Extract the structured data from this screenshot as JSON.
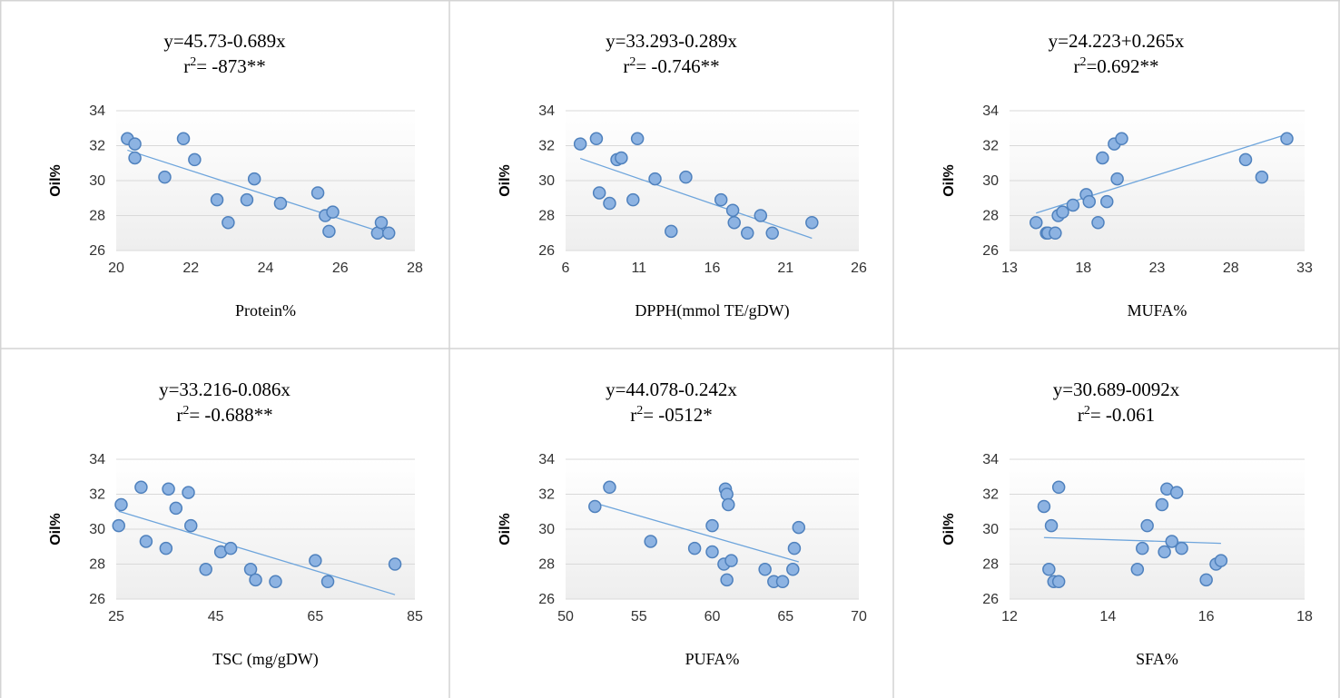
{
  "colors": {
    "marker_fill": "#8db3e2",
    "marker_stroke": "#4f81bd",
    "trend": "#6ea5dc",
    "grid": "#d9d9d9",
    "frame": "#d4d4d4"
  },
  "chart_data": [
    {
      "type": "scatter",
      "equation": "y=45.73-0.689x",
      "r2_prefix": "r",
      "r2_sup": "2",
      "r2_value": "= -873**",
      "xlabel": "Protein%",
      "ylabel": "Oil%",
      "xlim": [
        20,
        28
      ],
      "ylim": [
        26,
        34
      ],
      "xticks": [
        20,
        22,
        24,
        26,
        28
      ],
      "yticks": [
        26,
        28,
        30,
        32,
        34
      ],
      "points": [
        [
          20.3,
          32.4
        ],
        [
          20.5,
          32.1
        ],
        [
          20.5,
          31.3
        ],
        [
          21.3,
          30.2
        ],
        [
          21.8,
          32.4
        ],
        [
          22.1,
          31.2
        ],
        [
          22.7,
          28.9
        ],
        [
          23.0,
          27.6
        ],
        [
          23.5,
          28.9
        ],
        [
          23.7,
          30.1
        ],
        [
          24.4,
          28.7
        ],
        [
          25.4,
          29.3
        ],
        [
          25.6,
          28.0
        ],
        [
          25.7,
          27.1
        ],
        [
          25.8,
          28.2
        ],
        [
          27.0,
          27.0
        ],
        [
          27.1,
          27.6
        ],
        [
          27.3,
          27.0
        ]
      ],
      "trend": {
        "intercept": 45.73,
        "slope": -0.689,
        "x_range": [
          20.3,
          27.3
        ]
      }
    },
    {
      "type": "scatter",
      "equation": "y=33.293-0.289x",
      "r2_prefix": "r",
      "r2_sup": "2",
      "r2_value": "= -0.746**",
      "xlabel": "DPPH(mmol TE/gDW)",
      "ylabel": "Oil%",
      "xlim": [
        6,
        26
      ],
      "ylim": [
        26,
        34
      ],
      "xticks": [
        6,
        11,
        16,
        21,
        26
      ],
      "yticks": [
        26,
        28,
        30,
        32,
        34
      ],
      "points": [
        [
          7.0,
          32.1
        ],
        [
          8.1,
          32.4
        ],
        [
          8.3,
          29.3
        ],
        [
          9.0,
          28.7
        ],
        [
          9.5,
          31.2
        ],
        [
          9.8,
          31.3
        ],
        [
          10.6,
          28.9
        ],
        [
          10.9,
          32.4
        ],
        [
          12.1,
          30.1
        ],
        [
          13.2,
          27.1
        ],
        [
          14.2,
          30.2
        ],
        [
          16.6,
          28.9
        ],
        [
          17.4,
          28.3
        ],
        [
          17.5,
          27.6
        ],
        [
          18.4,
          27.0
        ],
        [
          19.3,
          28.0
        ],
        [
          20.1,
          27.0
        ],
        [
          22.8,
          27.6
        ]
      ],
      "trend": {
        "intercept": 33.293,
        "slope": -0.289,
        "x_range": [
          7.0,
          22.8
        ]
      }
    },
    {
      "type": "scatter",
      "equation": "y=24.223+0.265x",
      "r2_prefix": "r",
      "r2_sup": "2",
      "r2_value": "=0.692**",
      "xlabel": "MUFA%",
      "ylabel": "Oil%",
      "xlim": [
        13,
        33
      ],
      "ylim": [
        26,
        34
      ],
      "xticks": [
        13,
        18,
        23,
        28,
        33
      ],
      "yticks": [
        26,
        28,
        30,
        32,
        34
      ],
      "points": [
        [
          14.8,
          27.6
        ],
        [
          15.5,
          27.0
        ],
        [
          15.6,
          27.0
        ],
        [
          16.1,
          27.0
        ],
        [
          16.3,
          28.0
        ],
        [
          16.6,
          28.2
        ],
        [
          17.3,
          28.6
        ],
        [
          18.2,
          29.2
        ],
        [
          18.4,
          28.8
        ],
        [
          19.0,
          27.6
        ],
        [
          19.3,
          31.3
        ],
        [
          19.6,
          28.8
        ],
        [
          20.1,
          32.1
        ],
        [
          20.3,
          30.1
        ],
        [
          20.6,
          32.4
        ],
        [
          29.0,
          31.2
        ],
        [
          30.1,
          30.2
        ],
        [
          31.8,
          32.4
        ]
      ],
      "trend": {
        "intercept": 24.223,
        "slope": 0.265,
        "x_range": [
          14.8,
          31.8
        ]
      }
    },
    {
      "type": "scatter",
      "equation": "y=33.216-0.086x",
      "r2_prefix": "r",
      "r2_sup": "2",
      "r2_value": "= -0.688**",
      "xlabel": "TSC (mg/gDW)",
      "ylabel": "Oil%",
      "xlim": [
        25,
        85
      ],
      "ylim": [
        26,
        34
      ],
      "xticks": [
        25,
        45,
        65,
        85
      ],
      "yticks": [
        26,
        28,
        30,
        32,
        34
      ],
      "points": [
        [
          25.5,
          30.2
        ],
        [
          26.0,
          31.4
        ],
        [
          30.0,
          32.4
        ],
        [
          31.0,
          29.3
        ],
        [
          35.0,
          28.9
        ],
        [
          35.5,
          32.3
        ],
        [
          37.0,
          31.2
        ],
        [
          39.5,
          32.1
        ],
        [
          40.0,
          30.2
        ],
        [
          43.0,
          27.7
        ],
        [
          46.0,
          28.7
        ],
        [
          48.0,
          28.9
        ],
        [
          52.0,
          27.7
        ],
        [
          53.0,
          27.1
        ],
        [
          57.0,
          27.0
        ],
        [
          65.0,
          28.2
        ],
        [
          67.5,
          27.0
        ],
        [
          81.0,
          28.0
        ]
      ],
      "trend": {
        "intercept": 33.216,
        "slope": -0.086,
        "x_range": [
          25.5,
          81.0
        ]
      }
    },
    {
      "type": "scatter",
      "equation": "y=44.078-0.242x",
      "r2_prefix": "r",
      "r2_sup": "2",
      "r2_value": "= -0512*",
      "xlabel": "PUFA%",
      "ylabel": "Oil%",
      "xlim": [
        50,
        70
      ],
      "ylim": [
        26,
        34
      ],
      "xticks": [
        50,
        55,
        60,
        65,
        70
      ],
      "yticks": [
        26,
        28,
        30,
        32,
        34
      ],
      "points": [
        [
          52.0,
          31.3
        ],
        [
          53.0,
          32.4
        ],
        [
          55.8,
          29.3
        ],
        [
          58.8,
          28.9
        ],
        [
          60.0,
          30.2
        ],
        [
          60.0,
          28.7
        ],
        [
          60.8,
          28.0
        ],
        [
          60.9,
          32.3
        ],
        [
          61.0,
          32.0
        ],
        [
          61.0,
          27.1
        ],
        [
          61.1,
          31.4
        ],
        [
          61.3,
          28.2
        ],
        [
          63.6,
          27.7
        ],
        [
          64.2,
          27.0
        ],
        [
          64.8,
          27.0
        ],
        [
          65.5,
          27.7
        ],
        [
          65.6,
          28.9
        ],
        [
          65.9,
          30.1
        ]
      ],
      "trend": {
        "intercept": 44.078,
        "slope": -0.242,
        "x_range": [
          52.0,
          65.9
        ]
      }
    },
    {
      "type": "scatter",
      "equation": "y=30.689-0092x",
      "r2_prefix": "r",
      "r2_sup": "2",
      "r2_value": "= -0.061",
      "xlabel": "SFA%",
      "ylabel": "Oil%",
      "xlim": [
        12,
        18
      ],
      "ylim": [
        26,
        34
      ],
      "xticks": [
        12,
        14,
        16,
        18
      ],
      "yticks": [
        26,
        28,
        30,
        32,
        34
      ],
      "points": [
        [
          12.7,
          31.3
        ],
        [
          12.8,
          27.7
        ],
        [
          12.85,
          30.2
        ],
        [
          12.9,
          27.0
        ],
        [
          13.0,
          32.4
        ],
        [
          13.0,
          27.0
        ],
        [
          14.6,
          27.7
        ],
        [
          14.7,
          28.9
        ],
        [
          14.8,
          30.2
        ],
        [
          15.1,
          31.4
        ],
        [
          15.15,
          28.7
        ],
        [
          15.2,
          32.3
        ],
        [
          15.3,
          29.3
        ],
        [
          15.4,
          32.1
        ],
        [
          15.5,
          28.9
        ],
        [
          16.0,
          27.1
        ],
        [
          16.2,
          28.0
        ],
        [
          16.3,
          28.2
        ]
      ],
      "trend": {
        "intercept": 30.689,
        "slope": -0.092,
        "x_range": [
          12.7,
          16.3
        ]
      }
    }
  ]
}
